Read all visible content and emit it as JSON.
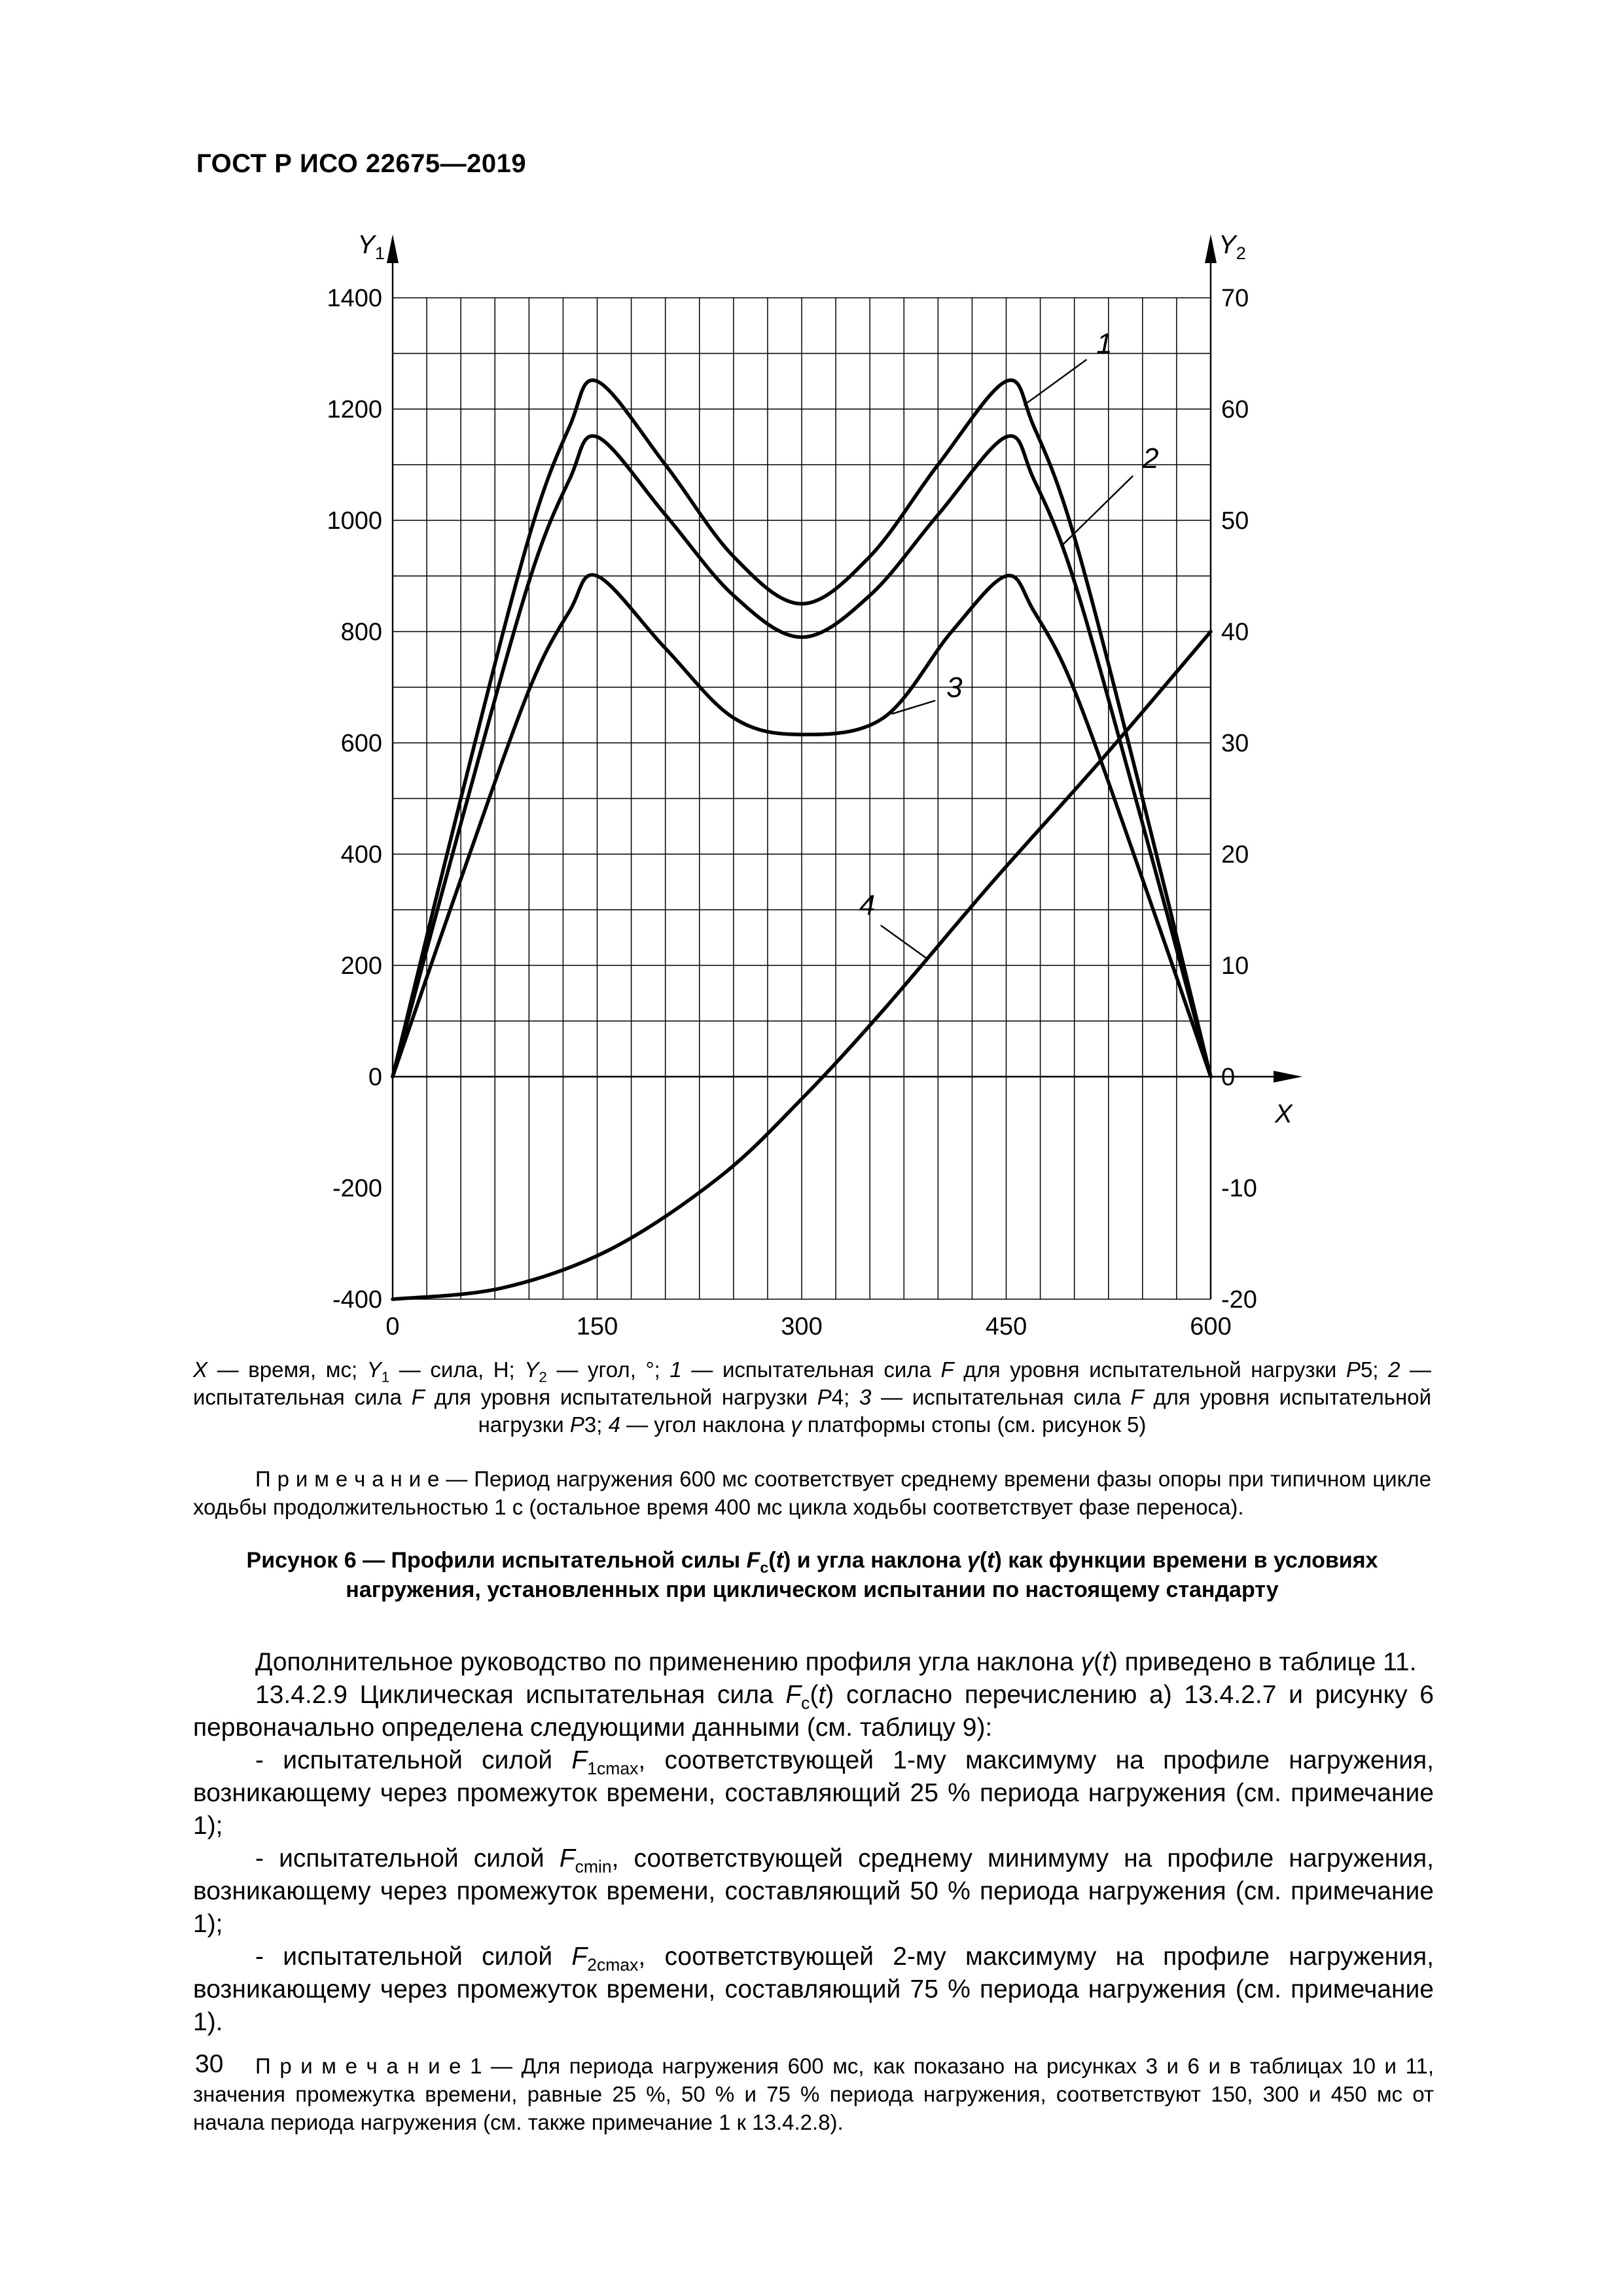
{
  "page": {
    "header": "ГОСТ Р ИСО 22675—2019",
    "page_number": "30"
  },
  "figure": {
    "legend_html": "<i>X</i> — время, мс; <i>Y</i><sub>1</sub> — сила, Н; <i>Y</i><sub>2</sub> — угол, °; <i>1</i> — испытательная сила <i>F</i> для уровня испытательной нагрузки <i>P</i>5; <i>2</i> — испытательная сила <i>F</i> для уровня испытательной нагрузки <i>P</i>4; <i>3</i> — испытательная сила <i>F</i> для уровня испытательной нагрузки <i>P</i>3; <i>4</i> — угол наклона <i>γ</i> платформы стопы (см. рисунок 5)",
    "note_html": "П р и м е ч а н и е — Период нагружения 600 мс соответствует среднему времени фазы опоры при типичном цикле ходьбы продолжительностью 1 с (остальное время 400 мс цикла ходьбы соответствует фазе переноса).",
    "caption_html": "Рисунок 6 — Профили испытательной силы <i>F</i><sub>c</sub>(<i>t</i>) и угла наклона <i>γ</i>(<i>t</i>) как функции времени в условиях нагружения, установленных при циклическом испытании по настоящему стандарту"
  },
  "body": {
    "p1": "Дополнительное руководство по применению профиля угла наклона <i>γ</i>(<i>t</i>) приведено в таблице 11.",
    "p2": "13.4.2.9 Циклическая испытательная сила <i>F</i><sub>c</sub>(<i>t</i>) согласно перечислению а) 13.4.2.7 и рисунку 6 первоначально определена следующими данными (см. таблицу 9):",
    "p3": "- испытательной силой <i>F</i><sub>1cmax</sub>, соответствующей 1-му максимуму на профиле нагружения, возникающему через промежуток времени, составляющий 25 % периода нагружения (см. примечание 1);",
    "p4": "- испытательной силой <i>F</i><sub>cmin</sub>, соответствующей среднему минимуму на профиле нагружения, возникающему через промежуток времени, составляющий 50 % периода нагружения (см. примечание 1);",
    "p5": "- испытательной силой <i>F</i><sub>2cmax</sub>, соответствующей 2-му максимуму на профиле нагружения, возникающему через промежуток времени, составляющий 75 % периода нагружения (см. примечание 1).",
    "note1": "П р и м е ч а н и е 1 — Для периода нагружения 600 мс, как показано на рисунках 3 и 6 и в таблицах 10 и 11, значения промежутка времени, равные 25 %, 50 % и 75 % периода нагружения, соответствуют 150, 300 и 450 мс от начала периода нагружения (см. также примечание 1 к 13.4.2.8)."
  },
  "chart_data": {
    "type": "line",
    "title": "Рисунок 6 — Профили испытательной силы Fc(t) и угла наклона γ(t)",
    "x_axis": {
      "label_html": "<i>X</i>",
      "min": 0,
      "max": 600,
      "ticks": [
        0,
        150,
        300,
        450,
        600
      ],
      "minor_grid_step": 25,
      "unit": "мс"
    },
    "y1_axis": {
      "label_html": "<i>Y</i><sub>1</sub>",
      "min": -400,
      "max": 1400,
      "ticks": [
        1400,
        1200,
        1000,
        800,
        600,
        400,
        200,
        0,
        -200,
        -400
      ],
      "grid_min": 0,
      "grid_max": 1400,
      "grid_step": 100,
      "unit": "Н"
    },
    "y2_axis": {
      "label_html": "<i>Y</i><sub>2</sub>",
      "min": -20,
      "max": 70,
      "ticks": [
        70,
        60,
        50,
        40,
        30,
        20,
        10,
        0,
        -10,
        -20
      ],
      "unit": "°"
    },
    "grid": true,
    "series": [
      {
        "name": "1",
        "axis": "y1",
        "points": [
          [
            0,
            0
          ],
          [
            50,
            500
          ],
          [
            100,
            970
          ],
          [
            130,
            1170
          ],
          [
            150,
            1250
          ],
          [
            200,
            1100
          ],
          [
            250,
            935
          ],
          [
            300,
            850
          ],
          [
            350,
            935
          ],
          [
            400,
            1100
          ],
          [
            450,
            1250
          ],
          [
            470,
            1170
          ],
          [
            500,
            970
          ],
          [
            550,
            500
          ],
          [
            600,
            0
          ]
        ]
      },
      {
        "name": "2",
        "axis": "y1",
        "points": [
          [
            0,
            0
          ],
          [
            50,
            455
          ],
          [
            100,
            890
          ],
          [
            130,
            1075
          ],
          [
            150,
            1150
          ],
          [
            200,
            1010
          ],
          [
            250,
            865
          ],
          [
            300,
            790
          ],
          [
            350,
            865
          ],
          [
            400,
            1010
          ],
          [
            450,
            1150
          ],
          [
            470,
            1075
          ],
          [
            500,
            890
          ],
          [
            550,
            455
          ],
          [
            600,
            0
          ]
        ]
      },
      {
        "name": "3",
        "axis": "y1",
        "points": [
          [
            0,
            0
          ],
          [
            50,
            355
          ],
          [
            100,
            695
          ],
          [
            130,
            838
          ],
          [
            150,
            900
          ],
          [
            200,
            770
          ],
          [
            250,
            645
          ],
          [
            300,
            615
          ],
          [
            360,
            645
          ],
          [
            410,
            800
          ],
          [
            450,
            900
          ],
          [
            470,
            838
          ],
          [
            500,
            695
          ],
          [
            550,
            355
          ],
          [
            600,
            0
          ]
        ]
      },
      {
        "name": "4",
        "axis": "y2",
        "points": [
          [
            0,
            -20
          ],
          [
            80,
            -19
          ],
          [
            160,
            -15.5
          ],
          [
            240,
            -9
          ],
          [
            300,
            -2
          ],
          [
            360,
            6
          ],
          [
            440,
            17.5
          ],
          [
            520,
            28.5
          ],
          [
            600,
            40
          ]
        ]
      }
    ],
    "annotations": [
      {
        "text": "1",
        "label": [
          522,
          1318
        ],
        "line": [
          [
            509,
            1289
          ],
          [
            463,
            1207
          ]
        ]
      },
      {
        "text": "2",
        "label": [
          556,
          1112
        ],
        "line": [
          [
            543,
            1080
          ],
          [
            491,
            955
          ]
        ]
      },
      {
        "text": "3",
        "label": [
          412,
          700
        ],
        "line": [
          [
            398,
            676
          ],
          [
            366,
            652
          ]
        ]
      },
      {
        "text": "4",
        "label": [
          348,
          308
        ],
        "line": [
          [
            358,
            272
          ],
          [
            392,
            212
          ]
        ]
      }
    ]
  }
}
